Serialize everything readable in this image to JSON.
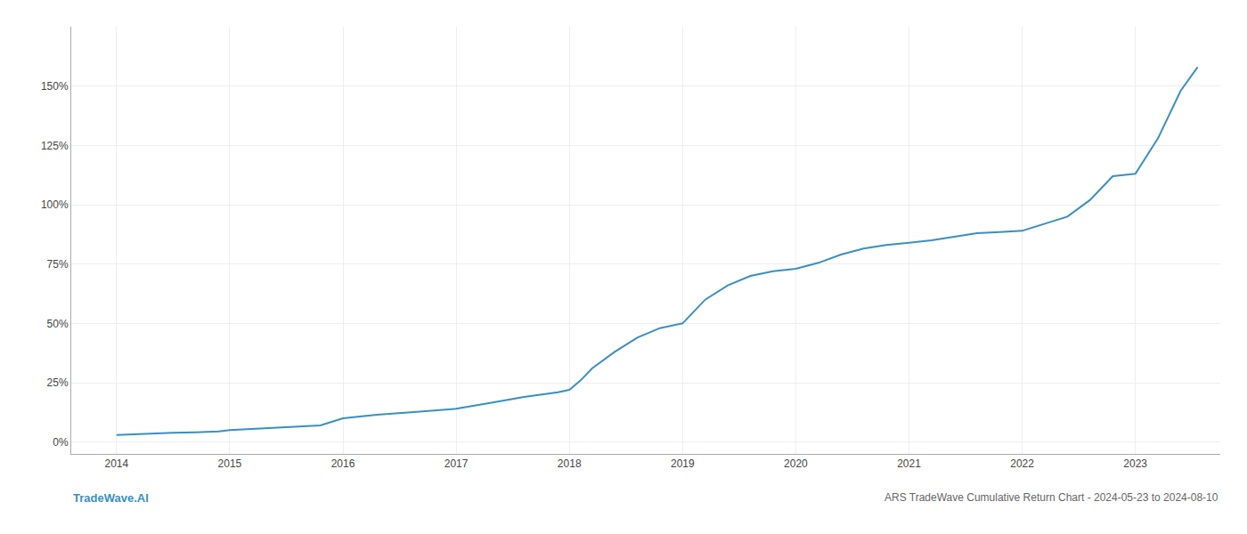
{
  "chart_data": {
    "type": "line",
    "annotations": [
      "TradeWave.AI",
      "ARS TradeWave Cumulative Return Chart - 2024-05-23 to 2024-08-10"
    ],
    "x": [
      2014.0,
      2014.15,
      2014.3,
      2014.5,
      2014.7,
      2014.9,
      2015.0,
      2015.2,
      2015.4,
      2015.6,
      2015.8,
      2016.0,
      2016.3,
      2016.6,
      2016.9,
      2017.0,
      2017.3,
      2017.6,
      2017.9,
      2018.0,
      2018.1,
      2018.2,
      2018.4,
      2018.6,
      2018.8,
      2019.0,
      2019.2,
      2019.4,
      2019.6,
      2019.8,
      2020.0,
      2020.2,
      2020.4,
      2020.6,
      2020.8,
      2021.0,
      2021.2,
      2021.4,
      2021.6,
      2021.8,
      2022.0,
      2022.2,
      2022.4,
      2022.6,
      2022.8,
      2023.0,
      2023.2,
      2023.4,
      2023.55
    ],
    "values": [
      3.0,
      3.3,
      3.6,
      3.9,
      4.1,
      4.5,
      5.0,
      5.5,
      6.0,
      6.5,
      7.0,
      10.0,
      11.5,
      12.5,
      13.5,
      14.0,
      16.5,
      19.0,
      21.0,
      22.0,
      26.0,
      31.0,
      38.0,
      44.0,
      48.0,
      50.0,
      60.0,
      66.0,
      70.0,
      72.0,
      73.0,
      75.5,
      79.0,
      81.5,
      83.0,
      84.0,
      85.0,
      86.5,
      88.0,
      88.5,
      89.0,
      92.0,
      95.0,
      102.0,
      112.0,
      113.0,
      128.0,
      148.0,
      158.0
    ],
    "color": "#3a8fc4",
    "xlim": [
      2013.6,
      2023.75
    ],
    "xticks": [
      2014,
      2015,
      2016,
      2017,
      2018,
      2019,
      2020,
      2021,
      2022,
      2023
    ],
    "ylim": [
      -5,
      175
    ],
    "yticks": [
      {
        "value": 0,
        "label": "0%"
      },
      {
        "value": 25,
        "label": "25%"
      },
      {
        "value": 50,
        "label": "50%"
      },
      {
        "value": 75,
        "label": "75%"
      },
      {
        "value": 100,
        "label": "100%"
      },
      {
        "value": 125,
        "label": "125%"
      },
      {
        "value": 150,
        "label": "150%"
      }
    ],
    "grid": true
  }
}
